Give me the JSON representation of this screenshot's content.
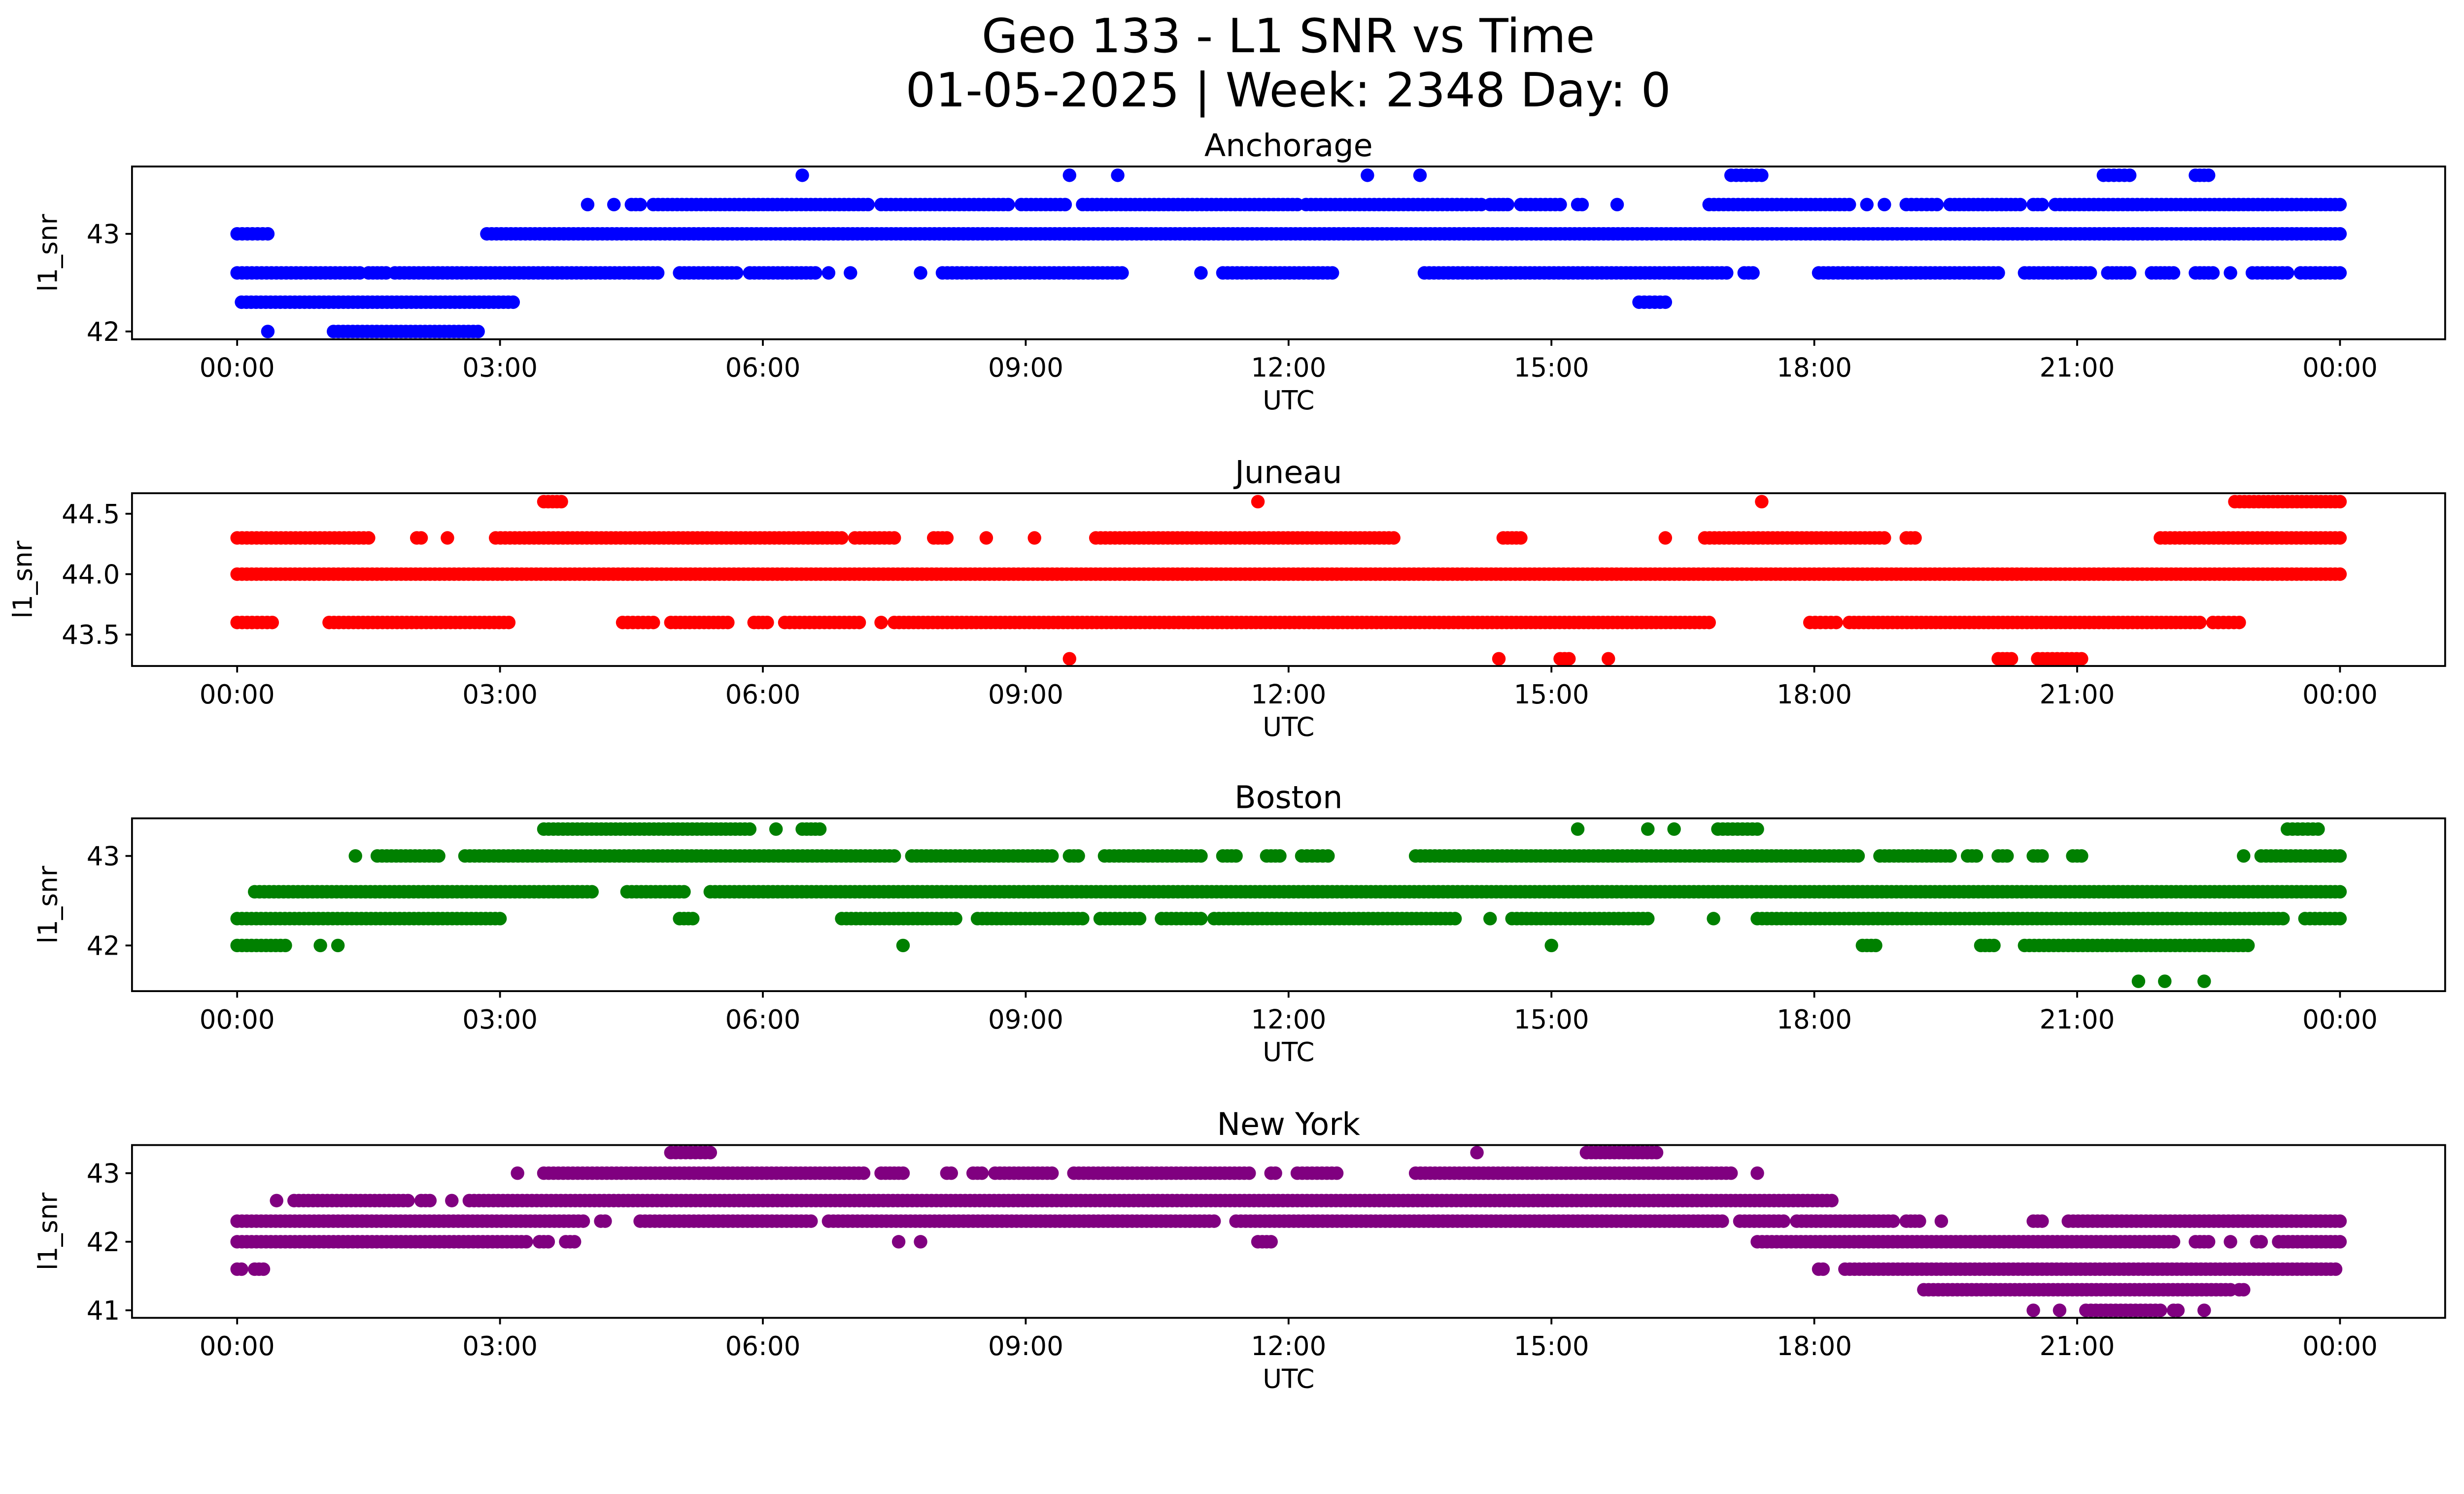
{
  "chart_data": {
    "type": "scatter",
    "title": "Geo 133 - L1 SNR vs Time",
    "subtitle": "01-05-2025 | Week: 2348 Day: 0",
    "xlabel": "UTC",
    "ylabel": "l1_snr",
    "x_unit": "hours UTC",
    "x_range_hours": [
      -1.2,
      25.2
    ],
    "x_ticks": [
      {
        "value": 0,
        "label": "00:00"
      },
      {
        "value": 3,
        "label": "03:00"
      },
      {
        "value": 6,
        "label": "06:00"
      },
      {
        "value": 9,
        "label": "09:00"
      },
      {
        "value": 12,
        "label": "12:00"
      },
      {
        "value": 15,
        "label": "15:00"
      },
      {
        "value": 18,
        "label": "18:00"
      },
      {
        "value": 21,
        "label": "21:00"
      },
      {
        "value": 24,
        "label": "00:00"
      }
    ],
    "grid": false,
    "legend": "none",
    "note": "Each run is a dense sequence of samples at one SNR level between start and end hour.",
    "panels": [
      {
        "title": "Anchorage",
        "color": "#0000ff",
        "ylim": [
          41.92,
          43.69
        ],
        "y_ticks": [
          {
            "value": 42,
            "label": "42"
          },
          {
            "value": 43,
            "label": "43"
          }
        ],
        "runs": [
          {
            "level": 43.6,
            "segments": [
              [
                6.45,
                6.45
              ],
              [
                9.5,
                9.5
              ],
              [
                10.05,
                10.05
              ],
              [
                12.9,
                12.9
              ],
              [
                13.5,
                13.5
              ],
              [
                17.05,
                17.4
              ],
              [
                21.3,
                21.6
              ],
              [
                22.35,
                22.5
              ]
            ]
          },
          {
            "level": 43.3,
            "segments": [
              [
                4.0,
                4.0
              ],
              [
                4.3,
                4.3
              ],
              [
                4.5,
                4.6
              ],
              [
                4.75,
                7.2
              ],
              [
                7.35,
                8.8
              ],
              [
                8.95,
                9.45
              ],
              [
                9.65,
                12.1
              ],
              [
                12.2,
                14.2
              ],
              [
                14.3,
                14.5
              ],
              [
                14.65,
                15.1
              ],
              [
                15.3,
                15.35
              ],
              [
                15.75,
                15.75
              ],
              [
                16.8,
                18.4
              ],
              [
                18.6,
                18.6
              ],
              [
                18.8,
                18.8
              ],
              [
                19.05,
                19.4
              ],
              [
                19.55,
                20.35
              ],
              [
                20.5,
                20.6
              ],
              [
                20.75,
                24.0
              ]
            ]
          },
          {
            "level": 43.0,
            "segments": [
              [
                0.0,
                0.35
              ],
              [
                2.85,
                24.0
              ]
            ]
          },
          {
            "level": 42.6,
            "segments": [
              [
                0.0,
                1.4
              ],
              [
                1.5,
                1.7
              ],
              [
                1.8,
                4.8
              ],
              [
                5.05,
                5.7
              ],
              [
                5.85,
                6.6
              ],
              [
                6.75,
                6.75
              ],
              [
                7.0,
                7.0
              ],
              [
                7.8,
                7.8
              ],
              [
                8.05,
                10.1
              ],
              [
                11.0,
                11.0
              ],
              [
                11.25,
                12.5
              ],
              [
                13.55,
                17.0
              ],
              [
                17.2,
                17.3
              ],
              [
                18.05,
                20.1
              ],
              [
                20.4,
                21.15
              ],
              [
                21.35,
                21.6
              ],
              [
                21.85,
                22.1
              ],
              [
                22.35,
                22.55
              ],
              [
                22.75,
                22.75
              ],
              [
                23.0,
                23.4
              ],
              [
                23.55,
                24.0
              ]
            ]
          },
          {
            "level": 42.3,
            "segments": [
              [
                0.05,
                3.15
              ],
              [
                16.0,
                16.3
              ]
            ]
          },
          {
            "level": 42.0,
            "segments": [
              [
                0.35,
                0.35
              ],
              [
                1.1,
                2.75
              ]
            ]
          }
        ]
      },
      {
        "title": "Juneau",
        "color": "#ff0000",
        "ylim": [
          43.24,
          44.67
        ],
        "y_ticks": [
          {
            "value": 43.5,
            "label": "43.5"
          },
          {
            "value": 44.0,
            "label": "44.0"
          },
          {
            "value": 44.5,
            "label": "44.5"
          }
        ],
        "runs": [
          {
            "level": 44.6,
            "segments": [
              [
                3.5,
                3.7
              ],
              [
                11.65,
                11.65
              ],
              [
                17.4,
                17.4
              ],
              [
                22.8,
                24.0
              ]
            ]
          },
          {
            "level": 44.3,
            "segments": [
              [
                0.0,
                1.5
              ],
              [
                2.05,
                2.1
              ],
              [
                2.4,
                2.4
              ],
              [
                2.95,
                6.9
              ],
              [
                7.05,
                7.5
              ],
              [
                7.95,
                8.1
              ],
              [
                8.55,
                8.55
              ],
              [
                9.1,
                9.1
              ],
              [
                9.8,
                13.2
              ],
              [
                14.45,
                14.65
              ],
              [
                16.3,
                16.3
              ],
              [
                16.75,
                18.8
              ],
              [
                19.05,
                19.15
              ],
              [
                21.95,
                24.0
              ]
            ]
          },
          {
            "level": 44.0,
            "segments": [
              [
                0.0,
                24.0
              ]
            ]
          },
          {
            "level": 43.6,
            "segments": [
              [
                0.0,
                0.4
              ],
              [
                1.05,
                3.1
              ],
              [
                4.4,
                4.75
              ],
              [
                4.95,
                5.6
              ],
              [
                5.9,
                6.05
              ],
              [
                6.25,
                7.1
              ],
              [
                7.35,
                7.35
              ],
              [
                7.5,
                16.8
              ],
              [
                17.95,
                18.25
              ],
              [
                18.4,
                22.4
              ],
              [
                22.55,
                22.85
              ]
            ]
          },
          {
            "level": 43.3,
            "segments": [
              [
                9.5,
                9.5
              ],
              [
                14.4,
                14.4
              ],
              [
                15.1,
                15.2
              ],
              [
                15.65,
                15.65
              ],
              [
                20.1,
                20.25
              ],
              [
                20.55,
                21.05
              ]
            ]
          }
        ]
      },
      {
        "title": "Boston",
        "color": "#008000",
        "ylim": [
          41.49,
          43.42
        ],
        "y_ticks": [
          {
            "value": 42,
            "label": "42"
          },
          {
            "value": 43,
            "label": "43"
          }
        ],
        "runs": [
          {
            "level": 43.3,
            "segments": [
              [
                3.5,
                5.85
              ],
              [
                6.15,
                6.15
              ],
              [
                6.45,
                6.65
              ],
              [
                15.3,
                15.3
              ],
              [
                16.1,
                16.1
              ],
              [
                16.4,
                16.4
              ],
              [
                16.9,
                17.35
              ],
              [
                23.4,
                23.75
              ]
            ]
          },
          {
            "level": 43.0,
            "segments": [
              [
                1.35,
                1.35
              ],
              [
                1.6,
                2.3
              ],
              [
                2.6,
                7.5
              ],
              [
                7.7,
                9.3
              ],
              [
                9.5,
                9.6
              ],
              [
                9.9,
                11.0
              ],
              [
                11.25,
                11.4
              ],
              [
                11.75,
                11.9
              ],
              [
                12.15,
                12.45
              ],
              [
                13.45,
                18.5
              ],
              [
                18.75,
                19.55
              ],
              [
                19.75,
                19.85
              ],
              [
                20.1,
                20.2
              ],
              [
                20.5,
                20.6
              ],
              [
                20.95,
                21.05
              ],
              [
                22.9,
                22.9
              ],
              [
                23.1,
                24.0
              ]
            ]
          },
          {
            "level": 42.6,
            "segments": [
              [
                0.2,
                4.05
              ],
              [
                4.45,
                5.1
              ],
              [
                5.4,
                24.0
              ]
            ]
          },
          {
            "level": 42.3,
            "segments": [
              [
                0.0,
                3.0
              ],
              [
                5.05,
                5.2
              ],
              [
                6.9,
                8.2
              ],
              [
                8.45,
                9.65
              ],
              [
                9.85,
                10.3
              ],
              [
                10.55,
                11.0
              ],
              [
                11.15,
                13.9
              ],
              [
                14.3,
                14.3
              ],
              [
                14.55,
                16.1
              ],
              [
                16.85,
                16.85
              ],
              [
                17.35,
                23.35
              ],
              [
                23.6,
                24.0
              ]
            ]
          },
          {
            "level": 42.0,
            "segments": [
              [
                0.0,
                0.55
              ],
              [
                0.95,
                0.95
              ],
              [
                1.15,
                1.15
              ],
              [
                7.6,
                7.6
              ],
              [
                15.0,
                15.0
              ],
              [
                18.55,
                18.7
              ],
              [
                19.9,
                20.05
              ],
              [
                20.4,
                22.95
              ]
            ]
          },
          {
            "level": 41.6,
            "segments": [
              [
                21.7,
                21.7
              ],
              [
                22.0,
                22.0
              ],
              [
                22.45,
                22.45
              ]
            ]
          }
        ]
      },
      {
        "title": "New York",
        "color": "#800080",
        "ylim": [
          40.89,
          43.41
        ],
        "y_ticks": [
          {
            "value": 41,
            "label": "41"
          },
          {
            "value": 42,
            "label": "42"
          },
          {
            "value": 43,
            "label": "43"
          }
        ],
        "runs": [
          {
            "level": 43.3,
            "segments": [
              [
                4.95,
                5.4
              ],
              [
                14.15,
                14.15
              ],
              [
                15.4,
                16.2
              ]
            ]
          },
          {
            "level": 43.0,
            "segments": [
              [
                3.2,
                3.2
              ],
              [
                3.5,
                7.15
              ],
              [
                7.35,
                7.6
              ],
              [
                8.1,
                8.15
              ],
              [
                8.4,
                8.5
              ],
              [
                8.65,
                9.3
              ],
              [
                9.55,
                11.55
              ],
              [
                11.8,
                11.85
              ],
              [
                12.1,
                12.55
              ],
              [
                13.45,
                17.05
              ],
              [
                17.35,
                17.35
              ]
            ]
          },
          {
            "level": 42.6,
            "segments": [
              [
                0.45,
                0.45
              ],
              [
                0.65,
                1.95
              ],
              [
                2.1,
                2.2
              ],
              [
                2.45,
                2.45
              ],
              [
                2.65,
                18.2
              ]
            ]
          },
          {
            "level": 42.3,
            "segments": [
              [
                0.0,
                3.95
              ],
              [
                4.15,
                4.2
              ],
              [
                4.6,
                6.55
              ],
              [
                6.75,
                11.15
              ],
              [
                11.4,
                16.95
              ],
              [
                17.15,
                17.65
              ],
              [
                17.8,
                18.9
              ],
              [
                19.05,
                19.2
              ],
              [
                19.45,
                19.45
              ],
              [
                20.5,
                20.6
              ],
              [
                20.9,
                24.0
              ]
            ]
          },
          {
            "level": 42.0,
            "segments": [
              [
                0.0,
                3.3
              ],
              [
                3.45,
                3.55
              ],
              [
                3.75,
                3.85
              ],
              [
                7.55,
                7.55
              ],
              [
                7.8,
                7.8
              ],
              [
                11.65,
                11.8
              ],
              [
                17.35,
                22.1
              ],
              [
                22.35,
                22.5
              ],
              [
                22.75,
                22.75
              ],
              [
                23.05,
                23.1
              ],
              [
                23.3,
                24.0
              ]
            ]
          },
          {
            "level": 41.6,
            "segments": [
              [
                0.0,
                0.05
              ],
              [
                0.2,
                0.3
              ],
              [
                18.05,
                18.1
              ],
              [
                18.35,
                23.95
              ]
            ]
          },
          {
            "level": 41.3,
            "segments": [
              [
                19.25,
                22.75
              ],
              [
                22.85,
                22.9
              ]
            ]
          },
          {
            "level": 41.0,
            "segments": [
              [
                20.5,
                20.5
              ],
              [
                20.8,
                20.8
              ],
              [
                21.1,
                21.95
              ],
              [
                22.1,
                22.15
              ],
              [
                22.45,
                22.45
              ]
            ]
          }
        ]
      }
    ]
  }
}
